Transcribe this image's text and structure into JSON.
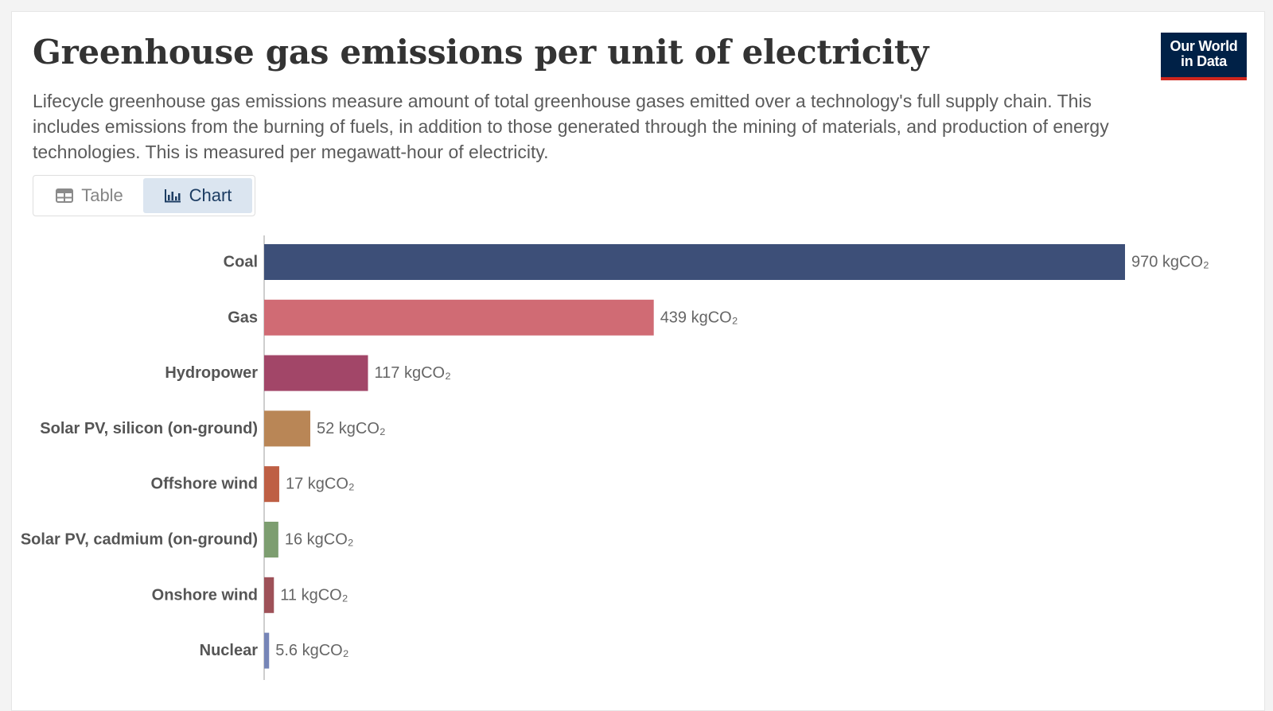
{
  "header": {
    "title": "Greenhouse gas emissions per unit of electricity",
    "subtitle": "Lifecycle greenhouse gas emissions measure amount of total greenhouse gases emitted over a technology's full supply chain. This includes emissions from the burning of fuels, in addition to those generated through the mining of materials, and production of energy technologies. This is measured per megawatt-hour of electricity.",
    "logo_line1": "Our World",
    "logo_line2": "in Data"
  },
  "tabs": {
    "table_label": "Table",
    "chart_label": "Chart",
    "active": "Chart",
    "table_icon": "table-icon",
    "chart_icon": "bar-chart-icon"
  },
  "chart_data": {
    "type": "bar",
    "orientation": "horizontal",
    "title": "",
    "xlabel": "",
    "ylabel": "",
    "unit": "kgCO₂",
    "categories": [
      "Coal",
      "Gas",
      "Hydropower",
      "Solar PV, silicon (on-ground)",
      "Offshore wind",
      "Solar PV, cadmium (on-ground)",
      "Onshore wind",
      "Nuclear"
    ],
    "values": [
      970,
      439,
      117,
      52,
      17,
      16,
      11,
      5.6
    ],
    "value_labels": [
      "970 kgCO₂",
      "439 kgCO₂",
      "117 kgCO₂",
      "52 kgCO₂",
      "17 kgCO₂",
      "16 kgCO₂",
      "11 kgCO₂",
      "5.6 kgCO₂"
    ],
    "colors": [
      "#3d4f78",
      "#d06b74",
      "#a24668",
      "#b98656",
      "#be5f44",
      "#7d9e70",
      "#9e5158",
      "#7685b7"
    ],
    "xlim": [
      0,
      970
    ],
    "grid": false,
    "legend": "none"
  }
}
